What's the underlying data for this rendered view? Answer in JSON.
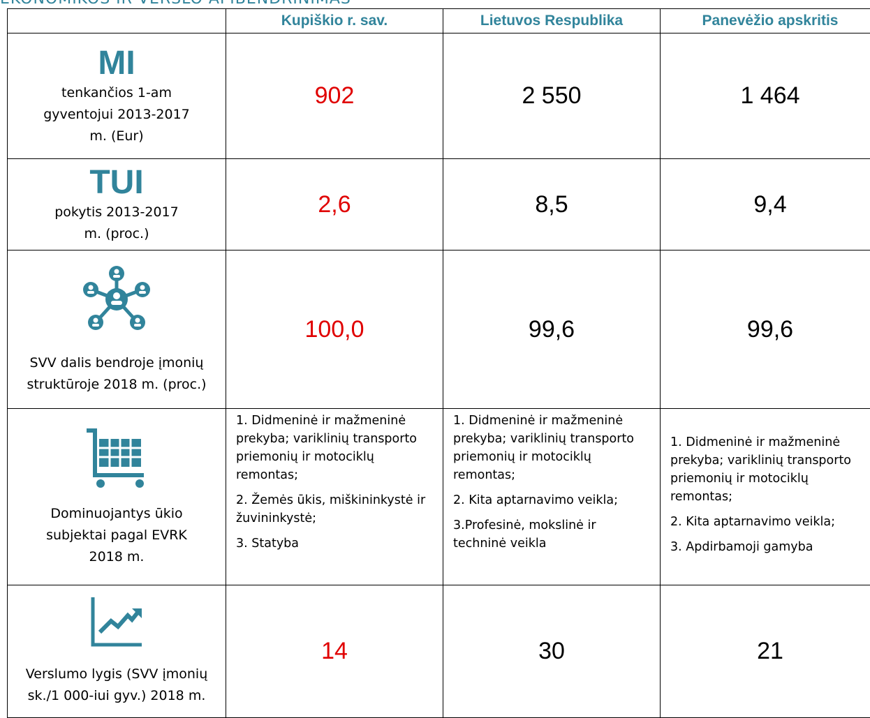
{
  "header": {
    "title": "EKONOMIKOS IR VERSLO APIBENDRINIMAS"
  },
  "table": {
    "columns": [
      "Kupiškio r. sav.",
      "Lietuvos Respublika",
      "Panevėžio apskritis"
    ],
    "rows": [
      {
        "heading": "MI",
        "label": "tenkančios 1-am gyventojui 2013-2017 m. (Eur)",
        "values": [
          "902",
          "2 550",
          "1 464"
        ]
      },
      {
        "heading": "TUI",
        "label": "pokytis 2013-2017 m. (proc.)",
        "values": [
          "2,6",
          "8,5",
          "9,4"
        ]
      },
      {
        "label": "SVV dalis bendroje įmonių struktūroje 2018 m. (proc.)",
        "values": [
          "100,0",
          "99,6",
          "99,6"
        ]
      },
      {
        "label": "Dominuojantys ūkio subjektai pagal EVRK 2018 m.",
        "lists": [
          [
            "1. Didmeninė ir mažmeninė prekyba; variklinių transporto priemonių ir motociklų remontas;",
            "2. Žemės ūkis, miškininkystė ir žuvininkystė;",
            "3. Statyba"
          ],
          [
            "1. Didmeninė ir mažmeninė prekyba; variklinių transporto priemonių ir motociklų remontas;",
            "2. Kita aptarnavimo veikla;",
            "3.Profesinė, mokslinė ir techninė veikla"
          ],
          [
            "1. Didmeninė ir mažmeninė prekyba; variklinių transporto priemonių ir motociklų remontas;",
            "2. Kita aptarnavimo veikla;",
            "3. Apdirbamoji gamyba"
          ]
        ]
      },
      {
        "label": "Verslumo lygis (SVV įmonių sk./1 000-iui gyv.) 2018 m.",
        "values": [
          "14",
          "30",
          "21"
        ]
      }
    ]
  }
}
